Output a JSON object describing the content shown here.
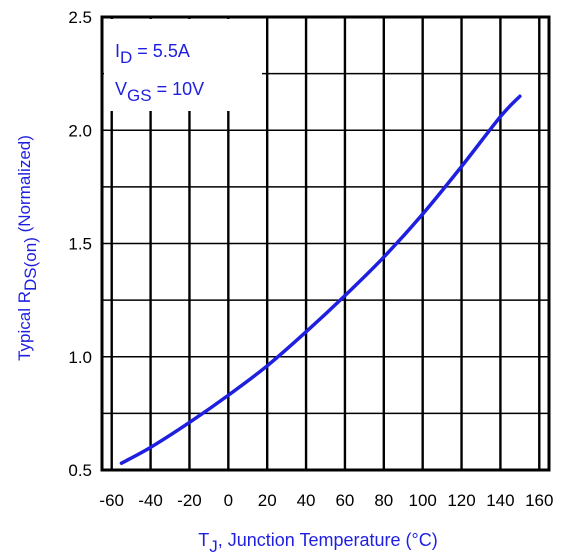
{
  "chart_data": {
    "type": "line",
    "title": "",
    "xlabel": {
      "symbol": "T",
      "sub": "J",
      "text": ", Junction Temperature (°C)"
    },
    "ylabel": {
      "prefix": "Typical R",
      "sub": "DS(on)",
      "suffix": "  (Normalized)"
    },
    "xlim": [
      -65,
      165
    ],
    "ylim": [
      0.5,
      2.5
    ],
    "x_ticks": [
      -60,
      -40,
      -20,
      0,
      20,
      40,
      60,
      80,
      100,
      120,
      140,
      160
    ],
    "x_tick_labels": [
      "-60",
      "-40",
      "-20",
      "0",
      "20",
      "40",
      "60",
      "80",
      "100",
      "120",
      "140",
      "160"
    ],
    "y_ticks": [
      0.5,
      1.0,
      1.5,
      2.0,
      2.5
    ],
    "y_tick_labels": [
      "0.5",
      "1.0",
      "1.5",
      "2.0",
      "2.5"
    ],
    "grid": true,
    "annotation": [
      {
        "main": "I",
        "sub": "D",
        "rest": " = 5.5A"
      },
      {
        "main": "V",
        "sub": "GS",
        "rest": " = 10V"
      }
    ],
    "series": [
      {
        "color": "#1f1fe0",
        "x": [
          -55,
          -40,
          -20,
          0,
          20,
          40,
          60,
          80,
          100,
          120,
          140,
          150
        ],
        "y": [
          0.53,
          0.6,
          0.71,
          0.83,
          0.96,
          1.11,
          1.27,
          1.44,
          1.63,
          1.84,
          2.06,
          2.15
        ]
      }
    ]
  }
}
